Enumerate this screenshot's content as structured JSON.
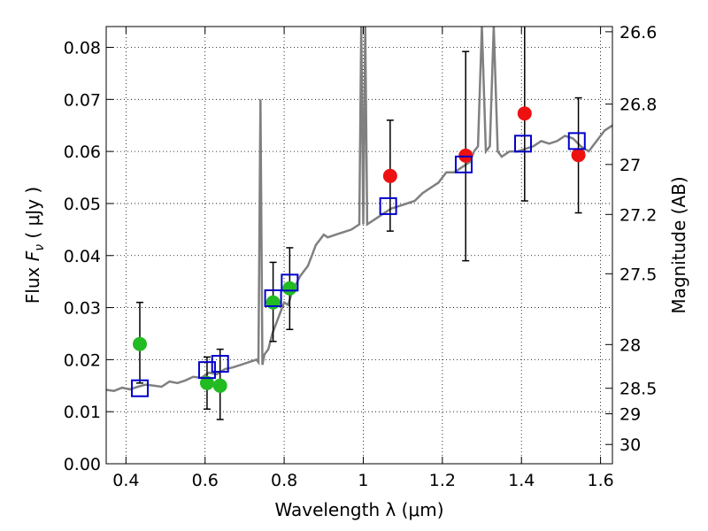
{
  "chart_data": {
    "type": "scatter",
    "xlabel": "Wavelength  λ (μm)",
    "ylabel": "Flux  F_ν ( μJy )",
    "ylabel_right": "Magnitude (AB)",
    "xlim": [
      0.35,
      1.63
    ],
    "ylim": [
      0.0,
      0.084
    ],
    "grid": true,
    "x_ticks": [
      0.4,
      0.6,
      0.8,
      1.0,
      1.2,
      1.4,
      1.6
    ],
    "x_tick_labels": [
      "0.4",
      "0.6",
      "0.8",
      "1",
      "1.2",
      "1.4",
      "1.6"
    ],
    "y_ticks": [
      0.0,
      0.01,
      0.02,
      0.03,
      0.04,
      0.05,
      0.06,
      0.07,
      0.08
    ],
    "y_tick_labels": [
      "0.00",
      "0.01",
      "0.02",
      "0.03",
      "0.04",
      "0.05",
      "0.06",
      "0.07",
      "0.08"
    ],
    "right_axis_ticks": [
      {
        "label": "26.6",
        "flux": 0.083
      },
      {
        "label": "26.8",
        "flux": 0.0691
      },
      {
        "label": "27",
        "flux": 0.0575
      },
      {
        "label": "27.2",
        "flux": 0.0479
      },
      {
        "label": "27.5",
        "flux": 0.0365
      },
      {
        "label": "28",
        "flux": 0.0229
      },
      {
        "label": "28.5",
        "flux": 0.0145
      },
      {
        "label": "29",
        "flux": 0.0096
      },
      {
        "label": "30",
        "flux": 0.0037
      }
    ],
    "series": [
      {
        "kind": "line",
        "color": "#808080",
        "x": [
          0.35,
          0.37,
          0.39,
          0.41,
          0.43,
          0.45,
          0.47,
          0.49,
          0.51,
          0.53,
          0.55,
          0.57,
          0.59,
          0.61,
          0.63,
          0.65,
          0.67,
          0.69,
          0.71,
          0.73,
          0.735,
          0.74,
          0.745,
          0.75,
          0.76,
          0.77,
          0.78,
          0.79,
          0.8,
          0.81,
          0.82,
          0.83,
          0.84,
          0.85,
          0.86,
          0.87,
          0.88,
          0.89,
          0.9,
          0.91,
          0.93,
          0.95,
          0.97,
          0.99,
          0.995,
          1.0,
          1.005,
          1.01,
          1.03,
          1.05,
          1.07,
          1.09,
          1.11,
          1.13,
          1.15,
          1.17,
          1.19,
          1.21,
          1.23,
          1.25,
          1.27,
          1.28,
          1.29,
          1.3,
          1.31,
          1.32,
          1.33,
          1.34,
          1.35,
          1.37,
          1.39,
          1.41,
          1.43,
          1.45,
          1.47,
          1.49,
          1.51,
          1.53,
          1.55,
          1.57,
          1.59,
          1.61,
          1.63
        ],
        "y": [
          0.0142,
          0.014,
          0.0146,
          0.0143,
          0.0148,
          0.0152,
          0.015,
          0.0148,
          0.0158,
          0.0155,
          0.016,
          0.0167,
          0.0165,
          0.0175,
          0.0172,
          0.0182,
          0.0185,
          0.019,
          0.0195,
          0.02,
          0.0195,
          0.07,
          0.019,
          0.021,
          0.022,
          0.025,
          0.027,
          0.029,
          0.031,
          0.0305,
          0.033,
          0.0345,
          0.036,
          0.037,
          0.038,
          0.04,
          0.042,
          0.043,
          0.044,
          0.0435,
          0.044,
          0.0445,
          0.045,
          0.046,
          0.084,
          0.046,
          0.084,
          0.046,
          0.047,
          0.048,
          0.049,
          0.0495,
          0.05,
          0.0505,
          0.052,
          0.053,
          0.054,
          0.056,
          0.056,
          0.057,
          0.058,
          0.06,
          0.061,
          0.084,
          0.06,
          0.061,
          0.084,
          0.06,
          0.059,
          0.06,
          0.06,
          0.0605,
          0.061,
          0.062,
          0.0615,
          0.062,
          0.063,
          0.0625,
          0.061,
          0.06,
          0.062,
          0.064,
          0.065
        ]
      },
      {
        "kind": "points",
        "marker": "circle",
        "color": "#22bb22",
        "x": [
          0.435,
          0.605,
          0.638,
          0.772,
          0.814
        ],
        "y": [
          0.023,
          0.0155,
          0.015,
          0.031,
          0.0337
        ],
        "yerr_low": [
          0.0155,
          0.0105,
          0.0085,
          0.0235,
          0.0258
        ],
        "yerr_high": [
          0.031,
          0.0205,
          0.022,
          0.0387,
          0.0415
        ]
      },
      {
        "kind": "points",
        "marker": "circle",
        "color": "#ee1111",
        "x": [
          1.068,
          1.259,
          1.408,
          1.544
        ],
        "y": [
          0.0553,
          0.0592,
          0.0673,
          0.0593
        ],
        "yerr_low": [
          0.0447,
          0.039,
          0.0505,
          0.0482
        ],
        "yerr_high": [
          0.066,
          0.0792,
          0.085,
          0.0703
        ]
      },
      {
        "kind": "points",
        "marker": "open-square",
        "color": "#0000cc",
        "x": [
          0.435,
          0.605,
          0.638,
          0.772,
          0.814,
          1.063,
          1.254,
          1.404,
          1.54
        ],
        "y": [
          0.0145,
          0.018,
          0.0192,
          0.0318,
          0.0348,
          0.0495,
          0.0575,
          0.0615,
          0.062
        ]
      }
    ]
  }
}
